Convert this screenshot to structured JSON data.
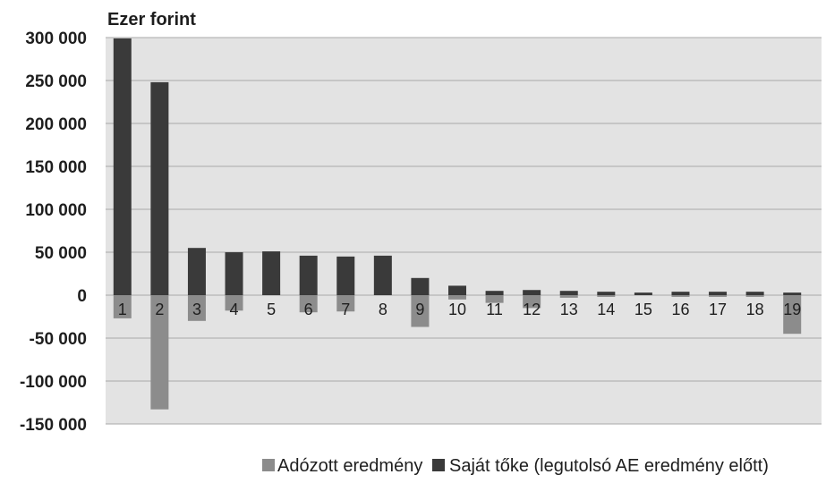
{
  "chart_data": {
    "type": "bar",
    "unit_label": "Ezer forint",
    "categories": [
      "1",
      "2",
      "3",
      "4",
      "5",
      "6",
      "7",
      "8",
      "9",
      "10",
      "11",
      "12",
      "13",
      "14",
      "15",
      "16",
      "17",
      "18",
      "19"
    ],
    "series": [
      {
        "name": "Adózott eredmény",
        "color": "#8c8c8c",
        "values": [
          -27000,
          -133000,
          -30000,
          -18000,
          5000,
          -20000,
          -19000,
          0,
          -37000,
          -5000,
          -9000,
          -15000,
          -3000,
          -2000,
          0,
          -2000,
          -2000,
          -2000,
          -45000
        ]
      },
      {
        "name": "Saját tőke (legutolsó AE eredmény előtt)",
        "color": "#3a3a3a",
        "values": [
          299000,
          248000,
          55000,
          50000,
          51000,
          46000,
          45000,
          46000,
          20000,
          11000,
          5000,
          6000,
          5000,
          4000,
          3000,
          4000,
          4000,
          4000,
          3000
        ]
      }
    ],
    "ylim": [
      -150000,
      300000
    ],
    "yticks": [
      300000,
      250000,
      200000,
      150000,
      100000,
      50000,
      0,
      -50000,
      -100000,
      -150000
    ],
    "ytick_labels": [
      "300 000",
      "250 000",
      "200 000",
      "150 000",
      "100 000",
      "50 000",
      "0",
      "-50 000",
      "-100 000",
      "-150 000"
    ],
    "grid": true,
    "legend_position": "bottom",
    "background_color": "#e3e3e3"
  }
}
